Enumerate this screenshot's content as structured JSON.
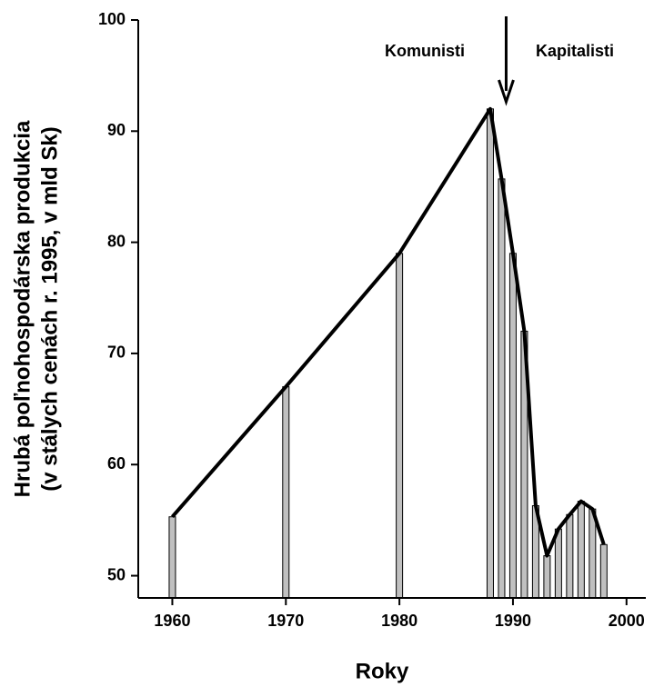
{
  "chart_data": {
    "type": "combo",
    "x_label": "Roky",
    "y_label": [
      "Hrubá poľnohospodárska produkcia",
      "(v stálych cenách r. 1995, v mld Sk)"
    ],
    "x": [
      1960,
      1970,
      1980,
      1988,
      1989,
      1990,
      1991,
      1992,
      1993,
      1994,
      1995,
      1996,
      1997,
      1998
    ],
    "values": [
      55.3,
      67,
      79,
      92,
      85.7,
      79,
      72,
      56.3,
      51.8,
      54.2,
      55.5,
      56.7,
      56,
      52.8
    ],
    "bar_color": "#c0c0c0",
    "line_color": "#000000",
    "xlim": [
      1957,
      2001.7
    ],
    "xticks": [
      1960,
      1970,
      1980,
      1990,
      2000
    ],
    "ylim": [
      48,
      100
    ],
    "yticks": [
      50,
      60,
      70,
      80,
      90,
      100
    ],
    "annotations": [
      "Komunisti",
      "Kapitalisti"
    ],
    "arrow_x": 1989.4
  }
}
